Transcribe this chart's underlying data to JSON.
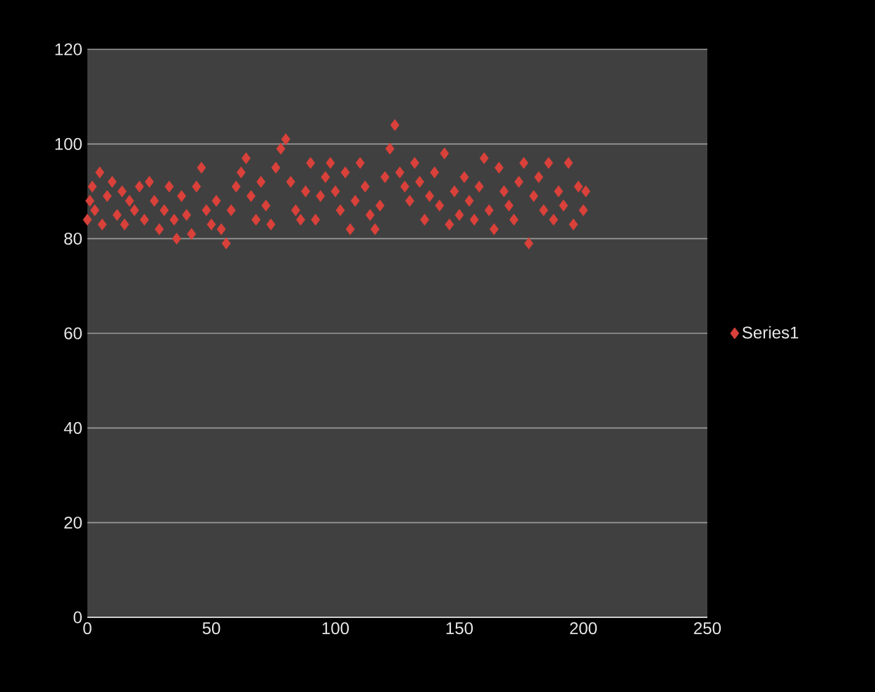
{
  "chart_data": {
    "type": "scatter",
    "marker": "diamond",
    "legend": "right",
    "grid": "y",
    "xlim": [
      0,
      250
    ],
    "xticks": [
      0,
      50,
      100,
      150,
      200,
      250
    ],
    "ylim": [
      0,
      120
    ],
    "yticks": [
      0,
      20,
      40,
      60,
      80,
      100,
      120
    ],
    "series": [
      {
        "name": "Series1",
        "color": "#d9413a",
        "x": [
          0,
          1,
          2,
          3,
          5,
          6,
          8,
          10,
          12,
          14,
          15,
          17,
          19,
          21,
          23,
          25,
          27,
          29,
          31,
          33,
          35,
          36,
          38,
          40,
          42,
          44,
          46,
          48,
          50,
          52,
          54,
          56,
          58,
          60,
          62,
          64,
          66,
          68,
          70,
          72,
          74,
          76,
          78,
          80,
          82,
          84,
          86,
          88,
          90,
          92,
          94,
          96,
          98,
          100,
          102,
          104,
          106,
          108,
          110,
          112,
          114,
          116,
          118,
          120,
          122,
          124,
          126,
          128,
          130,
          132,
          134,
          136,
          138,
          140,
          142,
          144,
          146,
          148,
          150,
          152,
          154,
          156,
          158,
          160,
          162,
          164,
          166,
          168,
          170,
          172,
          174,
          176,
          178,
          180,
          182,
          184,
          186,
          188,
          190,
          192,
          194,
          196,
          198,
          200,
          201
        ],
        "values": [
          84,
          88,
          91,
          86,
          94,
          83,
          89,
          92,
          85,
          90,
          83,
          88,
          86,
          91,
          84,
          92,
          88,
          82,
          86,
          91,
          84,
          80,
          89,
          85,
          81,
          91,
          95,
          86,
          83,
          88,
          82,
          79,
          86,
          91,
          94,
          97,
          89,
          84,
          92,
          87,
          83,
          95,
          99,
          101,
          92,
          86,
          84,
          90,
          96,
          84,
          89,
          93,
          96,
          90,
          86,
          94,
          82,
          88,
          96,
          91,
          85,
          82,
          87,
          93,
          99,
          104,
          94,
          91,
          88,
          96,
          92,
          84,
          89,
          94,
          87,
          98,
          83,
          90,
          85,
          93,
          88,
          84,
          91,
          97,
          86,
          82,
          95,
          90,
          87,
          84,
          92,
          96,
          79,
          89,
          93,
          86,
          96,
          84,
          90,
          87,
          96,
          83,
          91,
          86,
          90
        ]
      }
    ]
  }
}
